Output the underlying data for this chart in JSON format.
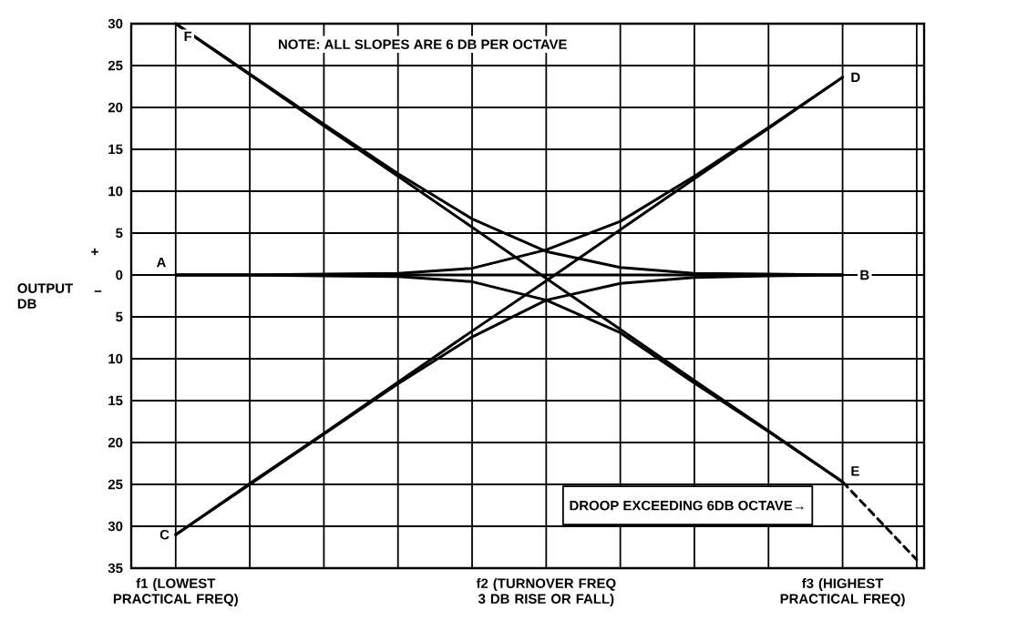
{
  "chart_data": {
    "type": "line",
    "ylabel": "OUTPUT DB",
    "grid": true,
    "line_style": "solid",
    "categories": [
      "f1 (LOWEST PRACTICAL FREQ)",
      null,
      null,
      null,
      null,
      "f2 (TURNOVER FREQ 3 DB RISE OR FALL)",
      null,
      null,
      null,
      "f3 (HIGHEST PRACTICAL FREQ)",
      null
    ],
    "ylim": [
      -35,
      30
    ],
    "yticks": [
      {
        "value": -35,
        "label": "35"
      },
      {
        "value": -30,
        "label": "30"
      },
      {
        "value": -25,
        "label": "25"
      },
      {
        "value": -20,
        "label": "20"
      },
      {
        "value": -15,
        "label": "15"
      },
      {
        "value": -10,
        "label": "10"
      },
      {
        "value": -5,
        "label": "5"
      },
      0,
      5,
      10,
      15,
      20,
      25,
      30
    ],
    "series": [
      {
        "color": "#000000",
        "values": [
          0,
          0,
          0,
          0,
          0,
          0,
          0,
          0,
          0,
          0,
          null
        ]
      },
      {
        "color": "#000000",
        "values": [
          -31,
          -24.9,
          -18.9,
          -12.8,
          -6.7,
          -0.7,
          5.4,
          11.5,
          17.5,
          23.6,
          null
        ]
      },
      {
        "color": "#000000",
        "values": [
          30,
          23.9,
          17.8,
          11.8,
          5.7,
          -0.4,
          -6.5,
          -12.6,
          -18.6,
          -24.7,
          null
        ]
      },
      {
        "color": "#000000",
        "values": [
          0,
          0,
          0.1,
          0.2,
          0.8,
          3,
          6.4,
          11.8,
          17.6,
          23.6,
          null
        ]
      },
      {
        "color": "#000000",
        "values": [
          0,
          0,
          -0.1,
          -0.2,
          -0.8,
          -3,
          -6.9,
          -12.9,
          -18.7,
          -24.7,
          null
        ]
      },
      {
        "color": "#000000",
        "values": [
          30,
          24,
          18,
          12.1,
          6.7,
          2.8,
          0.9,
          0.2,
          0.1,
          0,
          null
        ]
      },
      {
        "color": "#000000",
        "values": [
          -31,
          -25,
          -19,
          -13,
          -7.4,
          -3,
          -1,
          -0.3,
          -0.1,
          0,
          null
        ]
      },
      {
        "color": "#000000",
        "line_style": "dashed",
        "values": [
          null,
          null,
          null,
          null,
          null,
          null,
          null,
          null,
          null,
          -24.7,
          -34
        ]
      }
    ],
    "annotations": [
      "NOTE: ALL SLOPES ARE 6 DB PER OCTAVE",
      "DROOP EXCEEDING 6DB OCTAVE→",
      "+",
      "−",
      {
        "text": "A",
        "x": "f1 (LOWEST PRACTICAL FREQ)",
        "y": 0
      },
      {
        "text": "B",
        "x": "f3 (HIGHEST PRACTICAL FREQ)",
        "y": 0
      },
      {
        "text": "C",
        "x": "f1 (LOWEST PRACTICAL FREQ)",
        "y": -31
      },
      {
        "text": "D",
        "x": "f3 (HIGHEST PRACTICAL FREQ)",
        "y": 23.6
      },
      {
        "text": "E",
        "x": "f3 (HIGHEST PRACTICAL FREQ)",
        "y": -24.7
      },
      {
        "text": "F",
        "x": "f1 (LOWEST PRACTICAL FREQ)",
        "y": 30
      }
    ]
  }
}
